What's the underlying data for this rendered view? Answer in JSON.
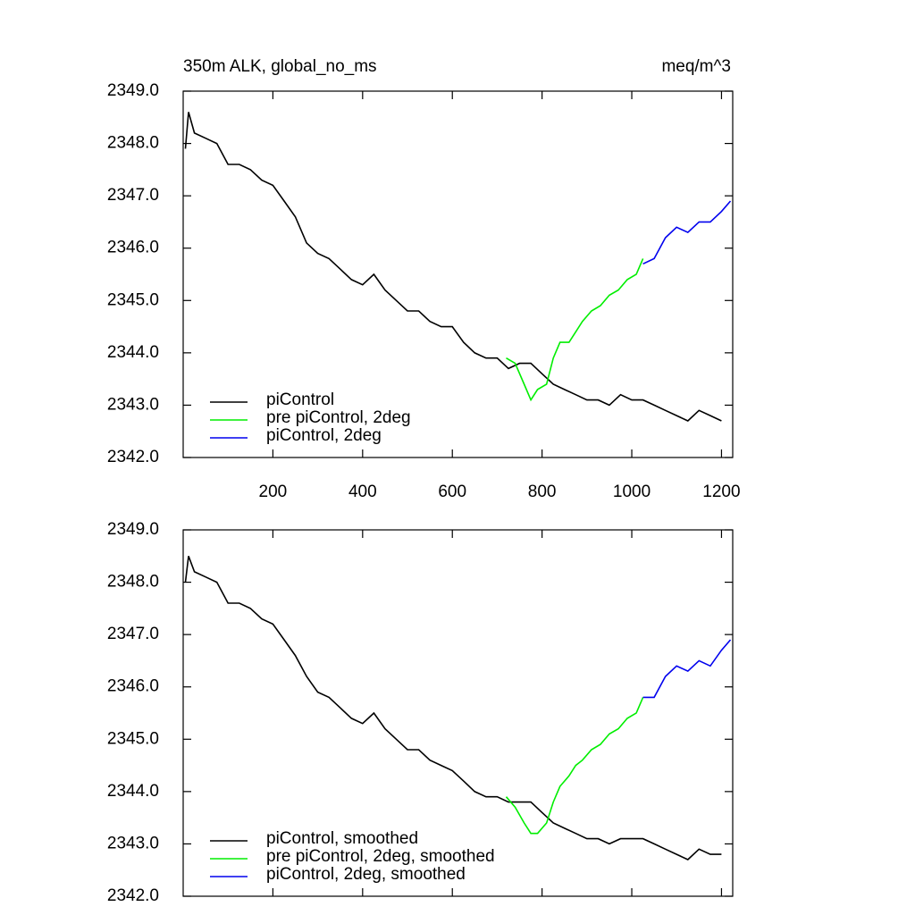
{
  "chart_data": [
    {
      "type": "line",
      "title": "350m ALK, global_no_ms",
      "units": "meq/m^3",
      "xlim": [
        0,
        1225
      ],
      "xticks": [
        200,
        400,
        600,
        800,
        1000,
        1200
      ],
      "ylim": [
        2342,
        2349
      ],
      "yticks": [
        {
          "value": 2342,
          "label": "2342.0"
        },
        {
          "value": 2343,
          "label": "2343.0"
        },
        {
          "value": 2344,
          "label": "2344.0"
        },
        {
          "value": 2345,
          "label": "2345.0"
        },
        {
          "value": 2346,
          "label": "2346.0"
        },
        {
          "value": 2347,
          "label": "2347.0"
        },
        {
          "value": 2348,
          "label": "2348.0"
        },
        {
          "value": 2349,
          "label": "2349.0"
        }
      ],
      "legend": "lower left",
      "series": [
        {
          "name": "piControl",
          "color": "#000000",
          "x": [
            5,
            12,
            25,
            50,
            75,
            100,
            125,
            150,
            175,
            200,
            225,
            250,
            275,
            300,
            325,
            350,
            375,
            400,
            425,
            450,
            475,
            500,
            525,
            550,
            575,
            600,
            625,
            650,
            675,
            700,
            725,
            750,
            775,
            800,
            825,
            850,
            875,
            900,
            925,
            950,
            975,
            1000,
            1025,
            1050,
            1075,
            1100,
            1125,
            1150,
            1175,
            1200
          ],
          "values": [
            2347.9,
            2348.6,
            2348.2,
            2348.1,
            2348.0,
            2347.6,
            2347.6,
            2347.5,
            2347.3,
            2347.2,
            2346.9,
            2346.6,
            2346.1,
            2345.9,
            2345.8,
            2345.6,
            2345.4,
            2345.3,
            2345.5,
            2345.2,
            2345.0,
            2344.8,
            2344.8,
            2344.6,
            2344.5,
            2344.5,
            2344.2,
            2344.0,
            2343.9,
            2343.9,
            2343.7,
            2343.8,
            2343.8,
            2343.6,
            2343.4,
            2343.3,
            2343.2,
            2343.1,
            2343.1,
            2343.0,
            2343.2,
            2343.1,
            2343.1,
            2343.0,
            2342.9,
            2342.8,
            2342.7,
            2342.9,
            2342.8,
            2342.7
          ]
        },
        {
          "name": "pre piControl, 2deg",
          "color": "#00ee00",
          "x": [
            720,
            740,
            760,
            775,
            790,
            810,
            825,
            840,
            860,
            875,
            890,
            910,
            930,
            950,
            970,
            990,
            1010,
            1025
          ],
          "values": [
            2343.9,
            2343.8,
            2343.4,
            2343.1,
            2343.3,
            2343.4,
            2343.9,
            2344.2,
            2344.2,
            2344.4,
            2344.6,
            2344.8,
            2344.9,
            2345.1,
            2345.2,
            2345.4,
            2345.5,
            2345.8
          ]
        },
        {
          "name": "piControl, 2deg",
          "color": "#0000ee",
          "x": [
            1025,
            1050,
            1075,
            1100,
            1125,
            1150,
            1175,
            1200,
            1220
          ],
          "values": [
            2345.7,
            2345.8,
            2346.2,
            2346.4,
            2346.3,
            2346.5,
            2346.5,
            2346.7,
            2346.9
          ]
        }
      ]
    },
    {
      "type": "line",
      "xlim": [
        0,
        1225
      ],
      "ylim": [
        2342,
        2349
      ],
      "yticks": [
        {
          "value": 2342,
          "label": "2342.0"
        },
        {
          "value": 2343,
          "label": "2343.0"
        },
        {
          "value": 2344,
          "label": "2344.0"
        },
        {
          "value": 2345,
          "label": "2345.0"
        },
        {
          "value": 2346,
          "label": "2346.0"
        },
        {
          "value": 2347,
          "label": "2347.0"
        },
        {
          "value": 2348,
          "label": "2348.0"
        },
        {
          "value": 2349,
          "label": "2349.0"
        }
      ],
      "legend": "lower left",
      "series": [
        {
          "name": "piControl, smoothed",
          "color": "#000000",
          "x": [
            5,
            12,
            25,
            50,
            75,
            100,
            125,
            150,
            175,
            200,
            225,
            250,
            275,
            300,
            325,
            350,
            375,
            400,
            425,
            450,
            475,
            500,
            525,
            550,
            575,
            600,
            625,
            650,
            675,
            700,
            725,
            750,
            775,
            800,
            825,
            850,
            875,
            900,
            925,
            950,
            975,
            1000,
            1025,
            1050,
            1075,
            1100,
            1125,
            1150,
            1175,
            1200
          ],
          "values": [
            2348.0,
            2348.5,
            2348.2,
            2348.1,
            2348.0,
            2347.6,
            2347.6,
            2347.5,
            2347.3,
            2347.2,
            2346.9,
            2346.6,
            2346.2,
            2345.9,
            2345.8,
            2345.6,
            2345.4,
            2345.3,
            2345.5,
            2345.2,
            2345.0,
            2344.8,
            2344.8,
            2344.6,
            2344.5,
            2344.4,
            2344.2,
            2344.0,
            2343.9,
            2343.9,
            2343.8,
            2343.8,
            2343.8,
            2343.6,
            2343.4,
            2343.3,
            2343.2,
            2343.1,
            2343.1,
            2343.0,
            2343.1,
            2343.1,
            2343.1,
            2343.0,
            2342.9,
            2342.8,
            2342.7,
            2342.9,
            2342.8,
            2342.8
          ]
        },
        {
          "name": "pre piControl, 2deg, smoothed",
          "color": "#00ee00",
          "x": [
            720,
            740,
            760,
            775,
            790,
            810,
            825,
            840,
            860,
            875,
            890,
            910,
            930,
            950,
            970,
            990,
            1010,
            1025
          ],
          "values": [
            2343.9,
            2343.7,
            2343.4,
            2343.2,
            2343.2,
            2343.4,
            2343.8,
            2344.1,
            2344.3,
            2344.5,
            2344.6,
            2344.8,
            2344.9,
            2345.1,
            2345.2,
            2345.4,
            2345.5,
            2345.8
          ]
        },
        {
          "name": "piControl, 2deg, smoothed",
          "color": "#0000ee",
          "x": [
            1025,
            1050,
            1075,
            1100,
            1125,
            1150,
            1175,
            1200,
            1220
          ],
          "values": [
            2345.8,
            2345.8,
            2346.2,
            2346.4,
            2346.3,
            2346.5,
            2346.4,
            2346.7,
            2346.9
          ]
        }
      ]
    }
  ]
}
